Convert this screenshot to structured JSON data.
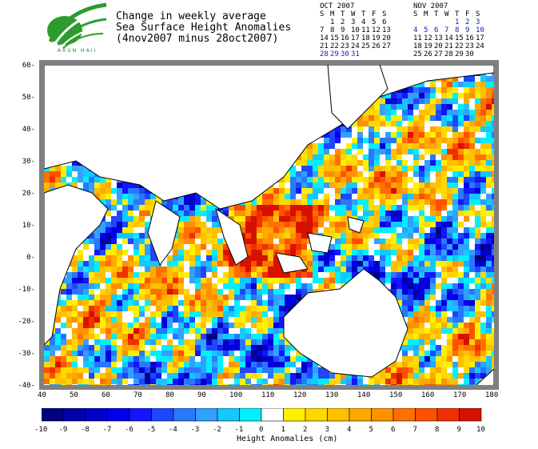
{
  "header": {
    "title_line1": "Change in weekly average",
    "title_line2": "Sea Surface Height Anomalies",
    "title_line3": "(4nov2007 minus 28oct2007)",
    "logo_text": "ARUN HAII"
  },
  "calendars": [
    {
      "month": "OCT 2007",
      "weekdays": [
        "S",
        "M",
        "T",
        "W",
        "T",
        "F",
        "S"
      ],
      "rows": [
        [
          "",
          "1",
          "2",
          "3",
          "4",
          "5",
          "6"
        ],
        [
          "7",
          "8",
          "9",
          "10",
          "11",
          "12",
          "13"
        ],
        [
          "14",
          "15",
          "16",
          "17",
          "18",
          "19",
          "20"
        ],
        [
          "21",
          "22",
          "23",
          "24",
          "25",
          "26",
          "27"
        ],
        [
          "28",
          "29",
          "30",
          "31",
          "",
          "",
          ""
        ]
      ],
      "highlight": [
        "28",
        "29",
        "30",
        "31"
      ]
    },
    {
      "month": "NOV 2007",
      "weekdays": [
        "S",
        "M",
        "T",
        "W",
        "T",
        "F",
        "S"
      ],
      "rows": [
        [
          "",
          "",
          "",
          "",
          "1",
          "2",
          "3"
        ],
        [
          "4",
          "5",
          "6",
          "7",
          "8",
          "9",
          "10"
        ],
        [
          "11",
          "12",
          "13",
          "14",
          "15",
          "16",
          "17"
        ],
        [
          "18",
          "19",
          "20",
          "21",
          "22",
          "23",
          "24"
        ],
        [
          "25",
          "26",
          "27",
          "28",
          "29",
          "30",
          ""
        ]
      ],
      "highlight": [
        "1",
        "2",
        "3",
        "4",
        "5",
        "6",
        "7",
        "8",
        "9",
        "10"
      ]
    }
  ],
  "map": {
    "lon_ticks": [
      "40",
      "50",
      "60",
      "70",
      "80",
      "90",
      "100",
      "110",
      "120",
      "130",
      "140",
      "150",
      "160",
      "170",
      "180"
    ],
    "lat_ticks": [
      "60",
      "50",
      "40",
      "30",
      "20",
      "10",
      "0",
      "-10",
      "-20",
      "-30",
      "-40"
    ],
    "lon_range": [
      40,
      180
    ],
    "lat_range": [
      -40,
      60
    ]
  },
  "colorbar": {
    "labels": [
      "-10",
      "-9",
      "-8",
      "-7",
      "-6",
      "-5",
      "-4",
      "-3",
      "-2",
      "-1",
      "0",
      "1",
      "2",
      "3",
      "4",
      "5",
      "6",
      "7",
      "8",
      "9",
      "10"
    ],
    "colors": [
      "#000080",
      "#0000a8",
      "#0000c8",
      "#0000e8",
      "#1414ff",
      "#1e46ff",
      "#2878ff",
      "#32a0ff",
      "#14c8ff",
      "#00f0ff",
      "#ffffff",
      "#fff000",
      "#ffd800",
      "#ffc000",
      "#ffa800",
      "#ff9000",
      "#ff7000",
      "#ff5000",
      "#f03000",
      "#d81000"
    ],
    "title": "Height Anomalies (cm)"
  }
}
